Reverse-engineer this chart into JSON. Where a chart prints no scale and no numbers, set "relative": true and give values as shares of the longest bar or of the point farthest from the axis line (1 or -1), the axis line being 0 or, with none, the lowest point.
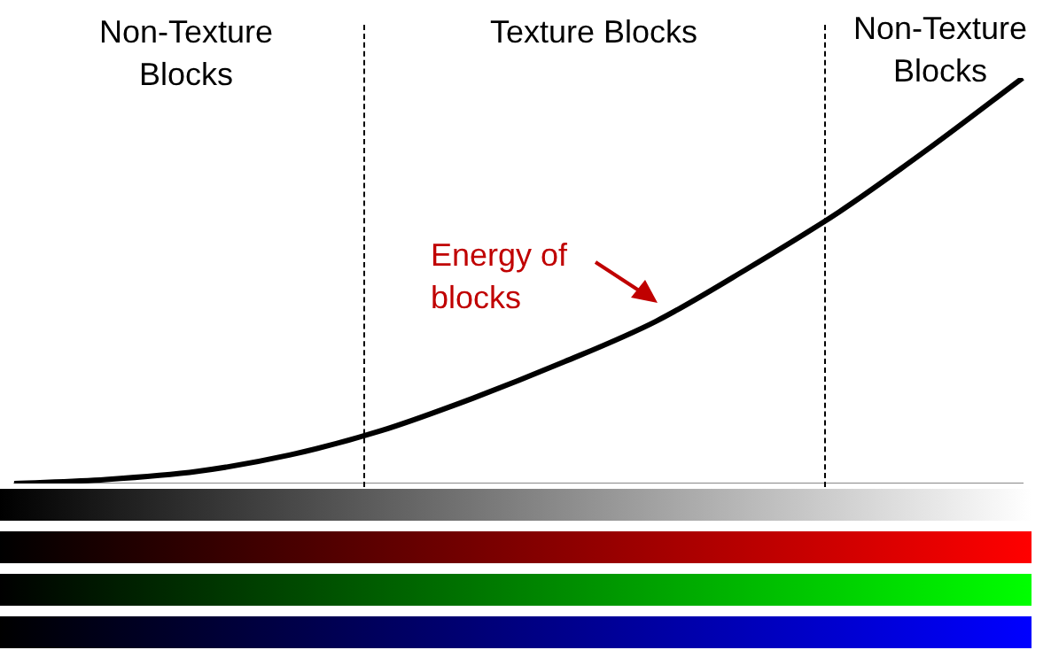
{
  "chart_data": {
    "type": "line",
    "relative": true,
    "categories": [
      null,
      null,
      null,
      null,
      null,
      null,
      null,
      null,
      null,
      null,
      null,
      null
    ],
    "series": [
      {
        "color": "#000000",
        "values": [
          0,
          0.01,
          0.03,
          0.07,
          0.13,
          0.21,
          0.3,
          0.4,
          0.53,
          0.67,
          0.83,
          1
        ]
      }
    ],
    "annotations": [
      "Non-Texture Blocks",
      "Texture Blocks",
      "Non-Texture Blocks",
      "Energy of blocks"
    ],
    "grid": false,
    "legend": false,
    "marker": "none",
    "line_style": "solid"
  }
}
